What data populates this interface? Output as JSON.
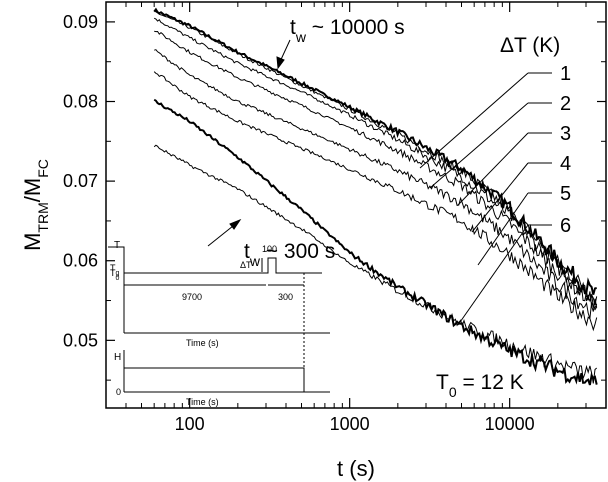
{
  "chart_data": {
    "type": "line",
    "title": "",
    "xlabel": "t (s)",
    "ylabel_main": "M",
    "ylabel_sub1": "TRM",
    "ylabel_slash": "/M",
    "ylabel_sub2": "FC",
    "x_scale": "log",
    "xlim": [
      30,
      40000
    ],
    "ylim": [
      0.0415,
      0.0925
    ],
    "x_ticks": [
      {
        "value": 100,
        "label": "100"
      },
      {
        "value": 1000,
        "label": "1000"
      },
      {
        "value": 10000,
        "label": "10000"
      }
    ],
    "y_ticks": [
      {
        "value": 0.05,
        "label": "0.05"
      },
      {
        "value": 0.06,
        "label": "0.06"
      },
      {
        "value": 0.07,
        "label": "0.07"
      },
      {
        "value": 0.08,
        "label": "0.08"
      },
      {
        "value": 0.09,
        "label": "0.09"
      }
    ],
    "legend_title": "ΔT (K)",
    "annotations": {
      "tw_long_main": "t",
      "tw_long_sub": "w",
      "tw_long_rest": " ~ 10000 s",
      "tw_short_main": "t",
      "tw_short_sub": "w",
      "tw_short_rest": " ~ 300 s",
      "t0_main": "T",
      "t0_sub": "0",
      "t0_rest": " = 12 K"
    },
    "series": [
      {
        "name": "1",
        "points": [
          [
            60,
            0.0915
          ],
          [
            100,
            0.0895
          ],
          [
            200,
            0.0862
          ],
          [
            500,
            0.0823
          ],
          [
            1000,
            0.0793
          ],
          [
            2000,
            0.0762
          ],
          [
            5000,
            0.0716
          ],
          [
            10000,
            0.0667
          ],
          [
            20000,
            0.06
          ],
          [
            35000,
            0.0555
          ]
        ]
      },
      {
        "name": "2",
        "points": [
          [
            60,
            0.0913
          ],
          [
            100,
            0.0893
          ],
          [
            200,
            0.086
          ],
          [
            500,
            0.082
          ],
          [
            1000,
            0.079
          ],
          [
            2000,
            0.0759
          ],
          [
            5000,
            0.0713
          ],
          [
            10000,
            0.0664
          ],
          [
            20000,
            0.0597
          ],
          [
            35000,
            0.0552
          ]
        ]
      },
      {
        "name": "3",
        "points": [
          [
            60,
            0.0905
          ],
          [
            100,
            0.088
          ],
          [
            200,
            0.0848
          ],
          [
            500,
            0.0812
          ],
          [
            1000,
            0.0783
          ],
          [
            2000,
            0.0752
          ],
          [
            5000,
            0.0706
          ],
          [
            10000,
            0.0657
          ],
          [
            20000,
            0.0592
          ],
          [
            35000,
            0.0548
          ]
        ]
      },
      {
        "name": "4",
        "points": [
          [
            60,
            0.089
          ],
          [
            100,
            0.0862
          ],
          [
            200,
            0.083
          ],
          [
            500,
            0.0795
          ],
          [
            1000,
            0.0767
          ],
          [
            2000,
            0.0738
          ],
          [
            5000,
            0.0695
          ],
          [
            10000,
            0.0647
          ],
          [
            20000,
            0.0585
          ],
          [
            35000,
            0.0543
          ]
        ]
      },
      {
        "name": "5",
        "points": [
          [
            60,
            0.0865
          ],
          [
            100,
            0.0833
          ],
          [
            200,
            0.08
          ],
          [
            500,
            0.0766
          ],
          [
            1000,
            0.074
          ],
          [
            2000,
            0.0713
          ],
          [
            5000,
            0.0673
          ],
          [
            10000,
            0.0628
          ],
          [
            20000,
            0.057
          ],
          [
            35000,
            0.0532
          ]
        ]
      },
      {
        "name": "6",
        "points": [
          [
            60,
            0.0838
          ],
          [
            100,
            0.0806
          ],
          [
            200,
            0.0775
          ],
          [
            500,
            0.0741
          ],
          [
            1000,
            0.0715
          ],
          [
            2000,
            0.0688
          ],
          [
            5000,
            0.065
          ],
          [
            10000,
            0.0608
          ],
          [
            20000,
            0.0555
          ],
          [
            35000,
            0.0521
          ]
        ]
      },
      {
        "name": "tw ~ 300 s (bold)",
        "points": [
          [
            60,
            0.0801
          ],
          [
            100,
            0.0775
          ],
          [
            200,
            0.073
          ],
          [
            500,
            0.0664
          ],
          [
            1000,
            0.061
          ],
          [
            2000,
            0.0567
          ],
          [
            5000,
            0.0518
          ],
          [
            10000,
            0.0487
          ],
          [
            20000,
            0.0462
          ],
          [
            35000,
            0.0446
          ]
        ]
      },
      {
        "name": "tw ~ 300 s (thin)",
        "points": [
          [
            60,
            0.0745
          ],
          [
            100,
            0.072
          ],
          [
            200,
            0.069
          ],
          [
            500,
            0.064
          ],
          [
            1000,
            0.0597
          ],
          [
            2000,
            0.0562
          ],
          [
            5000,
            0.0521
          ],
          [
            10000,
            0.0495
          ],
          [
            20000,
            0.047
          ],
          [
            35000,
            0.0455
          ]
        ]
      }
    ],
    "legend_labels": [
      "1",
      "2",
      "3",
      "4",
      "5",
      "6"
    ],
    "inset": {
      "labels": {
        "T": "T",
        "Tg": "T",
        "Tg_sub": "g",
        "T0": "T",
        "T0_sub": "0",
        "dT": "ΔT",
        "h100": "100",
        "h9700": "9700",
        "h300": "300",
        "time_top": "Time (s)",
        "H": "H",
        "zero": "0",
        "time_bottom": "Time (s)"
      }
    }
  }
}
